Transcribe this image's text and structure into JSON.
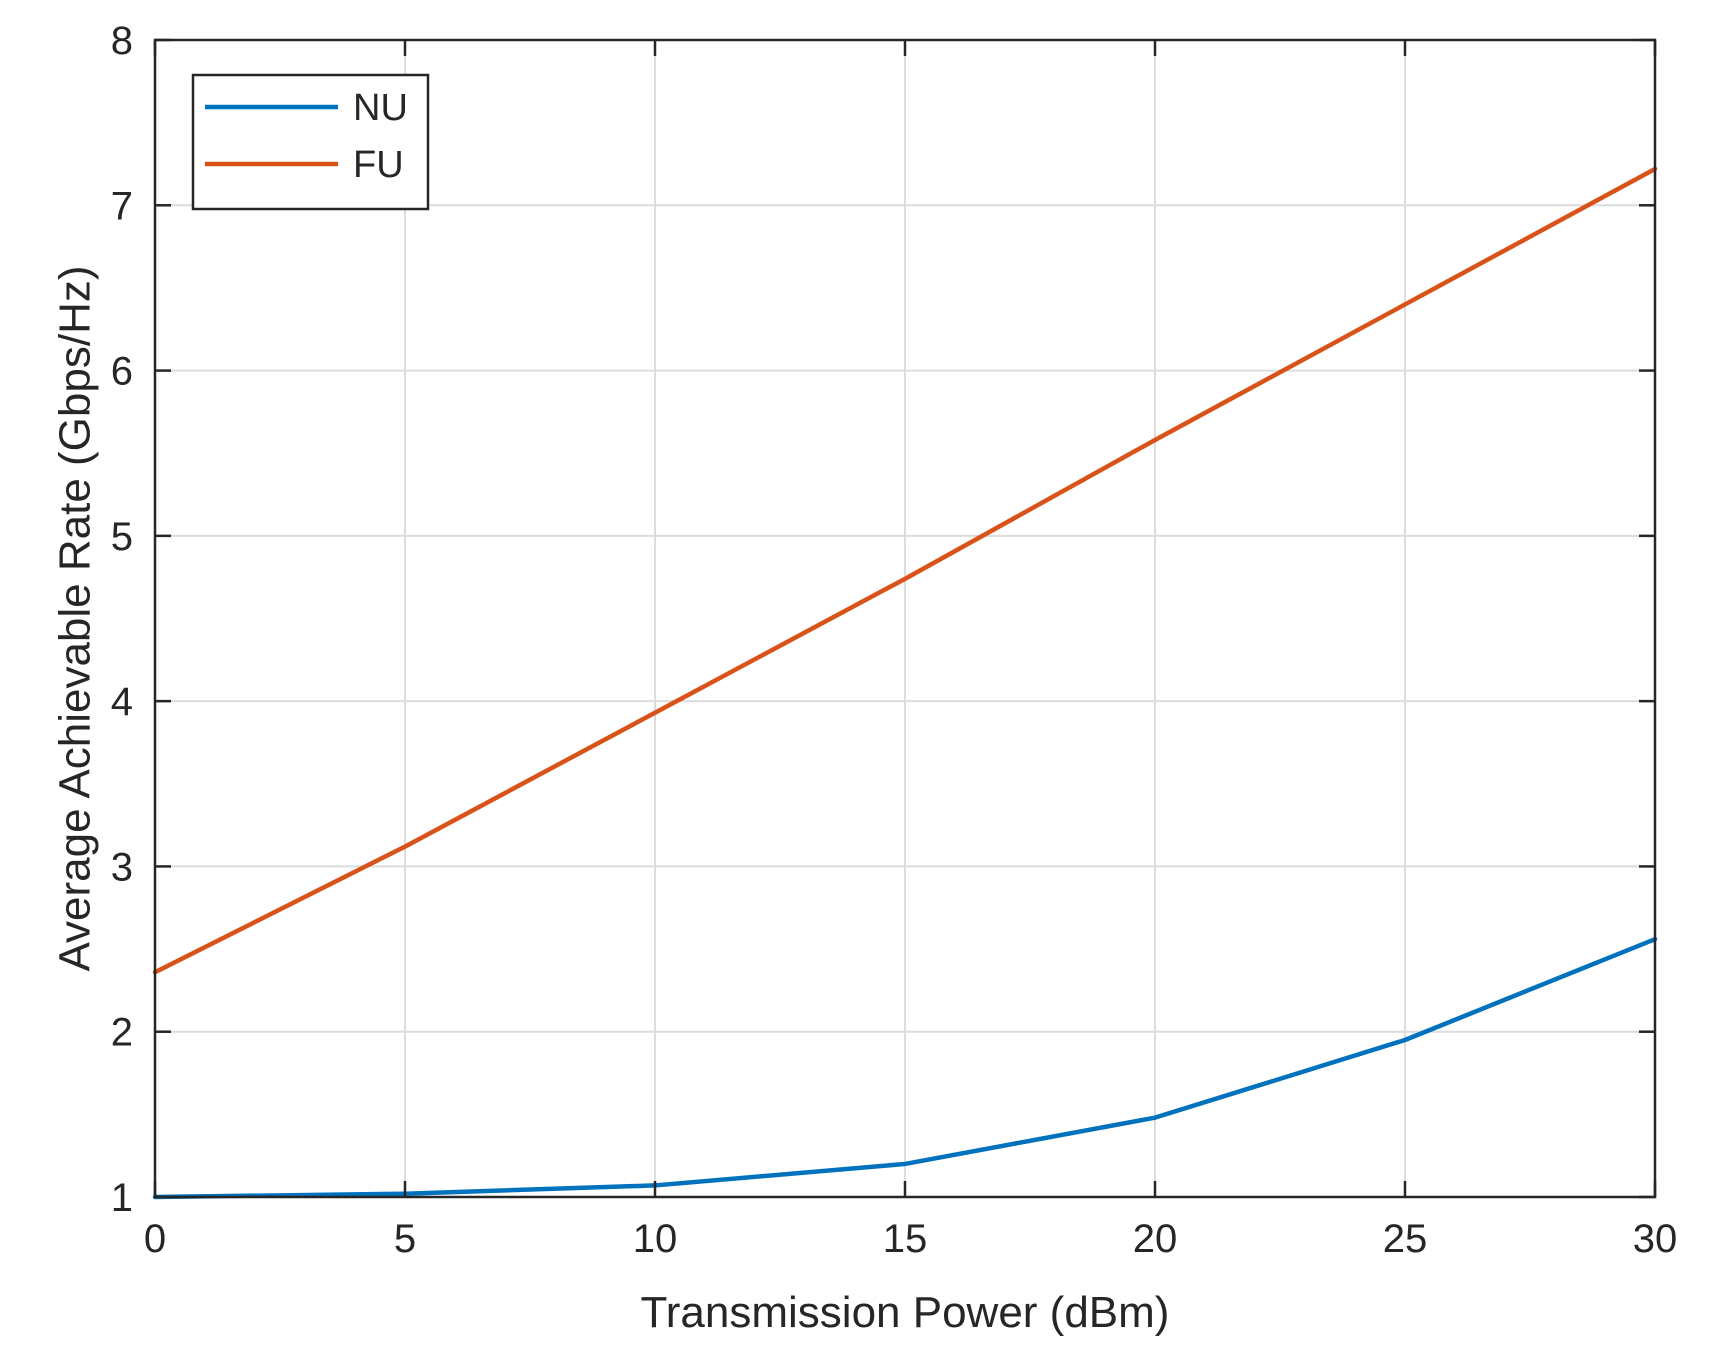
{
  "chart_data": {
    "type": "line",
    "title": "",
    "xlabel": "Transmission Power (dBm)",
    "ylabel": "Average Achievable Rate (Gbps/Hz)",
    "xlim": [
      0,
      30
    ],
    "ylim": [
      1,
      8
    ],
    "xticks": [
      "0",
      "5",
      "10",
      "15",
      "20",
      "25",
      "30"
    ],
    "yticks": [
      "1",
      "2",
      "3",
      "4",
      "5",
      "6",
      "7",
      "8"
    ],
    "grid": true,
    "legend_position": "top-left",
    "x": [
      0,
      5,
      10,
      15,
      20,
      25,
      30
    ],
    "series": [
      {
        "name": "NU",
        "color": "#0072BD",
        "values": [
          1.0,
          1.02,
          1.07,
          1.2,
          1.48,
          1.95,
          2.56
        ]
      },
      {
        "name": "FU",
        "color": "#D95319",
        "values": [
          2.36,
          3.12,
          3.93,
          4.74,
          5.58,
          6.4,
          7.22
        ]
      }
    ]
  }
}
